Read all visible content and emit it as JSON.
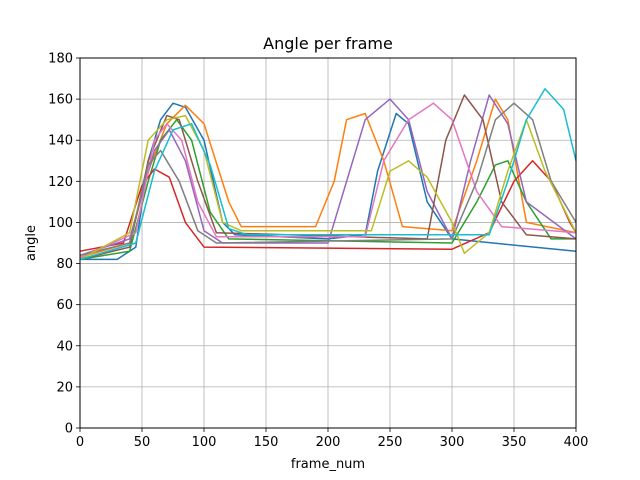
{
  "chart_data": {
    "type": "line",
    "title": "Angle per frame",
    "xlabel": "frame_num",
    "ylabel": "angle",
    "xlim": [
      0,
      400
    ],
    "ylim": [
      0,
      180
    ],
    "xticks": [
      0,
      50,
      100,
      150,
      200,
      250,
      300,
      350,
      400
    ],
    "yticks": [
      0,
      20,
      40,
      60,
      80,
      100,
      120,
      140,
      160,
      180
    ],
    "grid": true,
    "colors": [
      "#1f77b4",
      "#ff7f0e",
      "#2ca02c",
      "#d62728",
      "#9467bd",
      "#8c564b",
      "#e377c2",
      "#7f7f7f",
      "#bcbd22",
      "#17becf"
    ],
    "series": [
      {
        "color": "#1f77b4",
        "points": [
          [
            0,
            82
          ],
          [
            30,
            82
          ],
          [
            45,
            88
          ],
          [
            55,
            130
          ],
          [
            65,
            150
          ],
          [
            75,
            158
          ],
          [
            85,
            156
          ],
          [
            100,
            140
          ],
          [
            115,
            100
          ],
          [
            125,
            94
          ],
          [
            200,
            92
          ],
          [
            230,
            94
          ],
          [
            240,
            125
          ],
          [
            255,
            153
          ],
          [
            265,
            148
          ],
          [
            280,
            110
          ],
          [
            300,
            92
          ],
          [
            350,
            89
          ],
          [
            400,
            86
          ]
        ]
      },
      {
        "color": "#ff7f0e",
        "points": [
          [
            0,
            83
          ],
          [
            40,
            90
          ],
          [
            55,
            125
          ],
          [
            70,
            148
          ],
          [
            85,
            157
          ],
          [
            100,
            148
          ],
          [
            120,
            110
          ],
          [
            130,
            98
          ],
          [
            190,
            98
          ],
          [
            205,
            120
          ],
          [
            215,
            150
          ],
          [
            230,
            153
          ],
          [
            245,
            130
          ],
          [
            260,
            98
          ],
          [
            300,
            96
          ],
          [
            320,
            130
          ],
          [
            335,
            160
          ],
          [
            345,
            150
          ],
          [
            360,
            100
          ],
          [
            400,
            95
          ]
        ]
      },
      {
        "color": "#2ca02c",
        "points": [
          [
            0,
            82
          ],
          [
            40,
            86
          ],
          [
            55,
            120
          ],
          [
            65,
            140
          ],
          [
            78,
            150
          ],
          [
            90,
            140
          ],
          [
            105,
            105
          ],
          [
            120,
            92
          ],
          [
            300,
            90
          ],
          [
            320,
            110
          ],
          [
            335,
            128
          ],
          [
            345,
            130
          ],
          [
            360,
            110
          ],
          [
            380,
            92
          ],
          [
            400,
            92
          ]
        ]
      },
      {
        "color": "#d62728",
        "points": [
          [
            0,
            86
          ],
          [
            35,
            90
          ],
          [
            50,
            118
          ],
          [
            60,
            126
          ],
          [
            72,
            122
          ],
          [
            85,
            100
          ],
          [
            100,
            88
          ],
          [
            300,
            87
          ],
          [
            330,
            95
          ],
          [
            350,
            120
          ],
          [
            365,
            130
          ],
          [
            380,
            120
          ],
          [
            395,
            100
          ],
          [
            400,
            95
          ]
        ]
      },
      {
        "color": "#9467bd",
        "points": [
          [
            0,
            84
          ],
          [
            40,
            92
          ],
          [
            60,
            135
          ],
          [
            72,
            145
          ],
          [
            85,
            130
          ],
          [
            100,
            96
          ],
          [
            115,
            90
          ],
          [
            200,
            90
          ],
          [
            215,
            120
          ],
          [
            230,
            150
          ],
          [
            250,
            160
          ],
          [
            265,
            150
          ],
          [
            280,
            115
          ],
          [
            300,
            92
          ],
          [
            315,
            130
          ],
          [
            330,
            162
          ],
          [
            345,
            148
          ],
          [
            360,
            110
          ],
          [
            400,
            92
          ]
        ]
      },
      {
        "color": "#8c564b",
        "points": [
          [
            0,
            82
          ],
          [
            40,
            88
          ],
          [
            55,
            130
          ],
          [
            70,
            152
          ],
          [
            80,
            150
          ],
          [
            95,
            120
          ],
          [
            110,
            95
          ],
          [
            280,
            92
          ],
          [
            295,
            140
          ],
          [
            310,
            162
          ],
          [
            325,
            150
          ],
          [
            340,
            110
          ],
          [
            360,
            94
          ],
          [
            400,
            92
          ]
        ]
      },
      {
        "color": "#e377c2",
        "points": [
          [
            0,
            83
          ],
          [
            45,
            95
          ],
          [
            60,
            140
          ],
          [
            70,
            148
          ],
          [
            82,
            140
          ],
          [
            95,
            110
          ],
          [
            110,
            93
          ],
          [
            230,
            93
          ],
          [
            245,
            130
          ],
          [
            265,
            150
          ],
          [
            285,
            158
          ],
          [
            300,
            150
          ],
          [
            320,
            115
          ],
          [
            340,
            98
          ],
          [
            400,
            95
          ]
        ]
      },
      {
        "color": "#7f7f7f",
        "points": [
          [
            0,
            84
          ],
          [
            40,
            90
          ],
          [
            55,
            128
          ],
          [
            65,
            135
          ],
          [
            80,
            120
          ],
          [
            95,
            96
          ],
          [
            110,
            90
          ],
          [
            300,
            92
          ],
          [
            320,
            120
          ],
          [
            335,
            150
          ],
          [
            350,
            158
          ],
          [
            365,
            150
          ],
          [
            380,
            120
          ],
          [
            400,
            100
          ]
        ]
      },
      {
        "color": "#bcbd22",
        "points": [
          [
            0,
            82
          ],
          [
            40,
            95
          ],
          [
            55,
            140
          ],
          [
            70,
            150
          ],
          [
            85,
            152
          ],
          [
            100,
            135
          ],
          [
            115,
            100
          ],
          [
            130,
            96
          ],
          [
            235,
            96
          ],
          [
            250,
            125
          ],
          [
            265,
            130
          ],
          [
            280,
            122
          ],
          [
            300,
            100
          ],
          [
            310,
            85
          ],
          [
            330,
            95
          ],
          [
            345,
            125
          ],
          [
            360,
            150
          ],
          [
            375,
            125
          ],
          [
            400,
            95
          ]
        ]
      },
      {
        "color": "#17becf",
        "points": [
          [
            0,
            82
          ],
          [
            45,
            90
          ],
          [
            60,
            125
          ],
          [
            75,
            145
          ],
          [
            90,
            148
          ],
          [
            105,
            128
          ],
          [
            120,
            97
          ],
          [
            135,
            94
          ],
          [
            330,
            94
          ],
          [
            345,
            120
          ],
          [
            360,
            150
          ],
          [
            375,
            165
          ],
          [
            390,
            155
          ],
          [
            400,
            130
          ]
        ]
      }
    ]
  }
}
